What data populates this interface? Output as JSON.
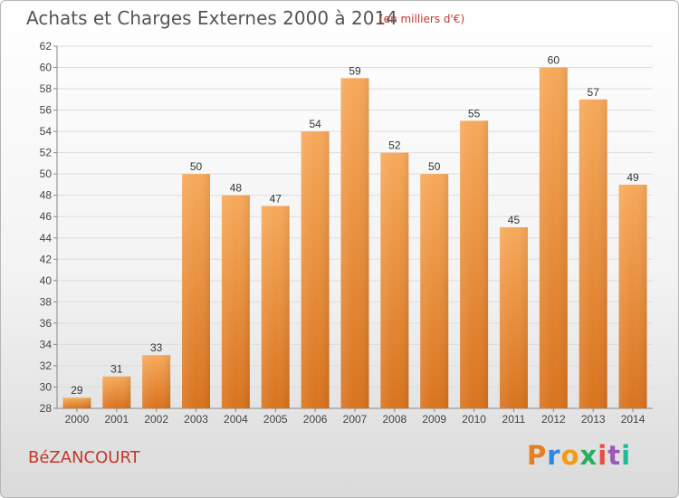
{
  "header": {
    "title": "Achats et Charges Externes 2000 à 2014",
    "subtitle": "(en milliers d'€)"
  },
  "footer": {
    "commune": "BéZANCOURT",
    "logo": [
      "P",
      "r",
      "o",
      "x",
      "i",
      "t",
      "i"
    ],
    "logo_colors": [
      "#e67e22",
      "#2e86de",
      "#f39c12",
      "#27ae60",
      "#e74c3c",
      "#9b59b6",
      "#1abc9c"
    ]
  },
  "chart_data": {
    "type": "bar",
    "title": "Achats et Charges Externes 2000 à 2014",
    "subtitle": "(en milliers d'€)",
    "categories": [
      "2000",
      "2001",
      "2002",
      "2003",
      "2004",
      "2005",
      "2006",
      "2007",
      "2008",
      "2009",
      "2010",
      "2011",
      "2012",
      "2013",
      "2014"
    ],
    "values": [
      29,
      31,
      33,
      50,
      48,
      47,
      54,
      59,
      52,
      50,
      55,
      45,
      60,
      57,
      49
    ],
    "ylim": [
      28,
      62
    ],
    "yticks": [
      28,
      30,
      32,
      34,
      36,
      38,
      40,
      42,
      44,
      46,
      48,
      50,
      52,
      54,
      56,
      58,
      60,
      62
    ],
    "grid": true,
    "bar_color_top": "#f7a95a",
    "bar_color_bottom": "#d9731e",
    "xlabel": "",
    "ylabel": ""
  }
}
